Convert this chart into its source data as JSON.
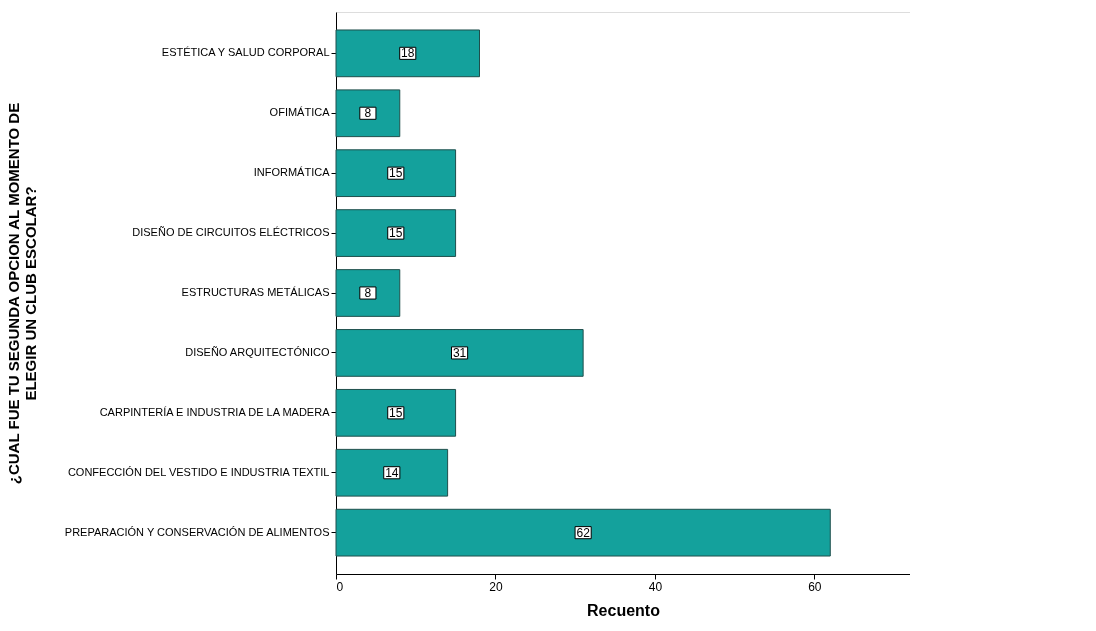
{
  "chart_data": {
    "type": "bar",
    "orientation": "horizontal",
    "xlabel": "Recuento",
    "ylabel": "¿CUAL FUE TU SEGUNDA OPCION AL MOMENTO DE ELEGIR UN CLUB ESCOLAR?",
    "categories": [
      "ESTÉTICA Y SALUD CORPORAL",
      "OFIMÁTICA",
      "INFORMÁTICA",
      "DISEÑO DE CIRCUITOS ELÉCTRICOS",
      "ESTRUCTURAS METÁLICAS",
      "DISEÑO ARQUITECTÓNICO",
      "CARPINTERÍA E INDUSTRIA DE LA MADERA",
      "CONFECCIÓN DEL VESTIDO E INDUSTRIA TEXTIL",
      "PREPARACIÓN Y CONSERVACIÓN DE ALIMENTOS"
    ],
    "values": [
      18,
      8,
      15,
      15,
      8,
      31,
      15,
      14,
      62
    ],
    "color": "#14a19c",
    "xlim": [
      0,
      72
    ],
    "xticks": [
      0,
      20,
      40,
      60
    ],
    "data_labels": true,
    "grid": false
  }
}
